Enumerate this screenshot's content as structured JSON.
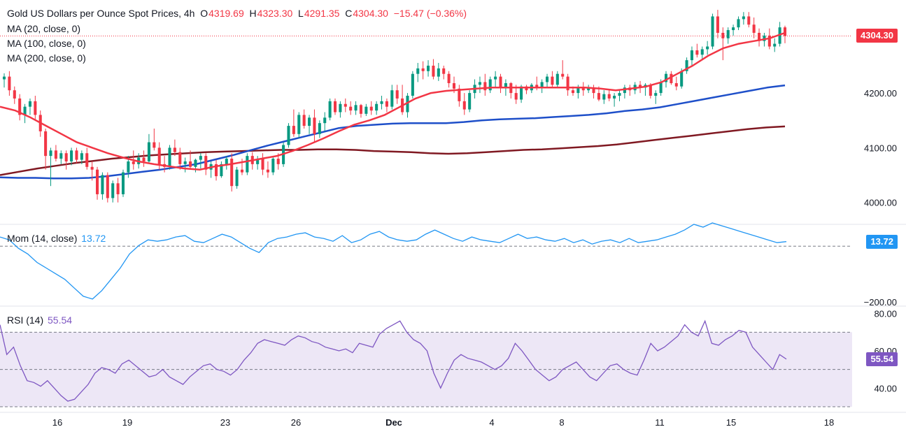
{
  "header": {
    "symbol": "Gold US Dollars per Ounce Spot Prices",
    "timeframe": "4h",
    "open_label": "O",
    "open": "4319.69",
    "high_label": "H",
    "high": "4323.30",
    "low_label": "L",
    "low": "4291.35",
    "close_label": "C",
    "close": "4304.30",
    "change": "−15.47 (−0.36%)"
  },
  "indicators": {
    "ma20": "MA (20, close, 0)",
    "ma100": "MA (100, close, 0)",
    "ma200": "MA (200, close, 0)",
    "mom": "Mom (14, close)",
    "mom_value": "13.72",
    "rsi": "RSI (14)",
    "rsi_value": "55.54"
  },
  "price_tag": "4304.30",
  "colors": {
    "up": "#089981",
    "down": "#f23645",
    "ma20": "#f23645",
    "ma100": "#1e4fc9",
    "ma200": "#801922",
    "mom": "#2196f3",
    "rsi": "#7e57c2",
    "rsi_band": "#ede7f6"
  },
  "chart_data": [
    {
      "type": "candlestick",
      "ylim": [
        3960,
        4370
      ],
      "yticks": [
        "4000.00",
        "4100.00",
        "4200.00"
      ],
      "xticks": [
        "16",
        "19",
        "23",
        "26",
        "Dec",
        "4",
        "8",
        "11",
        "15",
        "18"
      ],
      "last_price": 4304.3,
      "candles_ohlc": [
        [
          4225,
          4236,
          4210,
          4230
        ],
        [
          4230,
          4240,
          4195,
          4205
        ],
        [
          4205,
          4212,
          4180,
          4190
        ],
        [
          4190,
          4198,
          4150,
          4160
        ],
        [
          4160,
          4180,
          4145,
          4175
        ],
        [
          4175,
          4190,
          4160,
          4185
        ],
        [
          4185,
          4195,
          4150,
          4160
        ],
        [
          4160,
          4168,
          4120,
          4130
        ],
        [
          4130,
          4135,
          4060,
          4085
        ],
        [
          4085,
          4100,
          4030,
          4095
        ],
        [
          4095,
          4105,
          4075,
          4080
        ],
        [
          4080,
          4095,
          4070,
          4090
        ],
        [
          4090,
          4095,
          4060,
          4075
        ],
        [
          4075,
          4100,
          4068,
          4095
        ],
        [
          4095,
          4100,
          4072,
          4078
        ],
        [
          4078,
          4095,
          4070,
          4090
        ],
        [
          4090,
          4100,
          4060,
          4065
        ],
        [
          4065,
          4075,
          4040,
          4060
        ],
        [
          4060,
          4065,
          4005,
          4015
        ],
        [
          4015,
          4055,
          4005,
          4050
        ],
        [
          4050,
          4055,
          4000,
          4008
        ],
        [
          4008,
          4040,
          4000,
          4035
        ],
        [
          4035,
          4045,
          4000,
          4015
        ],
        [
          4015,
          4060,
          4010,
          4055
        ],
        [
          4055,
          4085,
          4045,
          4075
        ],
        [
          4075,
          4095,
          4060,
          4070
        ],
        [
          4070,
          4090,
          4062,
          4082
        ],
        [
          4082,
          4095,
          4065,
          4075
        ],
        [
          4075,
          4125,
          4072,
          4110
        ],
        [
          4110,
          4135,
          4095,
          4100
        ],
        [
          4100,
          4110,
          4060,
          4070
        ],
        [
          4070,
          4085,
          4055,
          4065
        ],
        [
          4065,
          4105,
          4060,
          4100
        ],
        [
          4100,
          4115,
          4085,
          4092
        ],
        [
          4092,
          4100,
          4060,
          4070
        ],
        [
          4070,
          4082,
          4055,
          4075
        ],
        [
          4075,
          4095,
          4062,
          4065
        ],
        [
          4065,
          4080,
          4055,
          4078
        ],
        [
          4078,
          4090,
          4062,
          4085
        ],
        [
          4085,
          4090,
          4050,
          4060
        ],
        [
          4060,
          4075,
          4045,
          4070
        ],
        [
          4070,
          4078,
          4040,
          4048
        ],
        [
          4048,
          4075,
          4045,
          4070
        ],
        [
          4070,
          4085,
          4060,
          4080
        ],
        [
          4080,
          4090,
          4020,
          4030
        ],
        [
          4030,
          4065,
          4025,
          4060
        ],
        [
          4060,
          4080,
          4050,
          4055
        ],
        [
          4055,
          4090,
          4050,
          4085
        ],
        [
          4085,
          4092,
          4060,
          4070
        ],
        [
          4070,
          4085,
          4060,
          4080
        ],
        [
          4080,
          4090,
          4050,
          4060
        ],
        [
          4060,
          4075,
          4045,
          4055
        ],
        [
          4055,
          4085,
          4050,
          4080
        ],
        [
          4080,
          4090,
          4060,
          4070
        ],
        [
          4070,
          4110,
          4065,
          4105
        ],
        [
          4105,
          4145,
          4100,
          4140
        ],
        [
          4140,
          4170,
          4120,
          4125
        ],
        [
          4125,
          4165,
          4118,
          4160
        ],
        [
          4160,
          4170,
          4135,
          4140
        ],
        [
          4140,
          4160,
          4125,
          4155
        ],
        [
          4155,
          4170,
          4110,
          4125
        ],
        [
          4125,
          4150,
          4118,
          4145
        ],
        [
          4145,
          4165,
          4130,
          4155
        ],
        [
          4155,
          4190,
          4150,
          4185
        ],
        [
          4185,
          4190,
          4160,
          4165
        ],
        [
          4165,
          4185,
          4155,
          4180
        ],
        [
          4180,
          4190,
          4165,
          4175
        ],
        [
          4175,
          4185,
          4160,
          4168
        ],
        [
          4168,
          4185,
          4160,
          4178
        ],
        [
          4178,
          4180,
          4155,
          4162
        ],
        [
          4162,
          4180,
          4158,
          4175
        ],
        [
          4175,
          4185,
          4160,
          4168
        ],
        [
          4168,
          4185,
          4160,
          4180
        ],
        [
          4180,
          4195,
          4170,
          4185
        ],
        [
          4185,
          4190,
          4165,
          4175
        ],
        [
          4175,
          4215,
          4170,
          4205
        ],
        [
          4205,
          4215,
          4180,
          4190
        ],
        [
          4190,
          4215,
          4160,
          4165
        ],
        [
          4165,
          4200,
          4155,
          4195
        ],
        [
          4195,
          4240,
          4190,
          4235
        ],
        [
          4235,
          4255,
          4220,
          4245
        ],
        [
          4245,
          4258,
          4225,
          4240
        ],
        [
          4240,
          4260,
          4230,
          4250
        ],
        [
          4250,
          4262,
          4225,
          4230
        ],
        [
          4230,
          4255,
          4222,
          4245
        ],
        [
          4245,
          4250,
          4225,
          4235
        ],
        [
          4235,
          4240,
          4210,
          4218
        ],
        [
          4218,
          4230,
          4200,
          4208
        ],
        [
          4208,
          4215,
          4175,
          4185
        ],
        [
          4185,
          4200,
          4160,
          4170
        ],
        [
          4170,
          4205,
          4165,
          4200
        ],
        [
          4200,
          4225,
          4190,
          4215
        ],
        [
          4215,
          4230,
          4200,
          4220
        ],
        [
          4220,
          4235,
          4195,
          4205
        ],
        [
          4205,
          4230,
          4200,
          4225
        ],
        [
          4225,
          4240,
          4210,
          4230
        ],
        [
          4230,
          4235,
          4200,
          4210
        ],
        [
          4210,
          4225,
          4195,
          4218
        ],
        [
          4218,
          4220,
          4190,
          4200
        ],
        [
          4200,
          4215,
          4180,
          4188
        ],
        [
          4188,
          4215,
          4182,
          4212
        ],
        [
          4212,
          4215,
          4198,
          4205
        ],
        [
          4205,
          4218,
          4200,
          4215
        ],
        [
          4215,
          4230,
          4205,
          4210
        ],
        [
          4210,
          4225,
          4200,
          4220
        ],
        [
          4220,
          4235,
          4210,
          4230
        ],
        [
          4230,
          4240,
          4210,
          4215
        ],
        [
          4215,
          4240,
          4210,
          4235
        ],
        [
          4235,
          4260,
          4225,
          4230
        ],
        [
          4230,
          4235,
          4195,
          4205
        ],
        [
          4205,
          4212,
          4195,
          4200
        ],
        [
          4200,
          4215,
          4190,
          4210
        ],
        [
          4210,
          4220,
          4195,
          4205
        ],
        [
          4205,
          4215,
          4200,
          4210
        ],
        [
          4210,
          4215,
          4190,
          4200
        ],
        [
          4200,
          4212,
          4185,
          4188
        ],
        [
          4188,
          4205,
          4180,
          4198
        ],
        [
          4198,
          4205,
          4185,
          4190
        ],
        [
          4190,
          4200,
          4175,
          4195
        ],
        [
          4195,
          4205,
          4185,
          4200
        ],
        [
          4200,
          4215,
          4190,
          4210
        ],
        [
          4210,
          4215,
          4195,
          4205
        ],
        [
          4205,
          4220,
          4198,
          4215
        ],
        [
          4215,
          4222,
          4200,
          4210
        ],
        [
          4210,
          4218,
          4195,
          4215
        ],
        [
          4215,
          4218,
          4190,
          4195
        ],
        [
          4195,
          4205,
          4180,
          4200
        ],
        [
          4200,
          4225,
          4195,
          4220
        ],
        [
          4220,
          4240,
          4210,
          4235
        ],
        [
          4235,
          4240,
          4215,
          4218
        ],
        [
          4218,
          4230,
          4205,
          4212
        ],
        [
          4212,
          4245,
          4208,
          4240
        ],
        [
          4240,
          4265,
          4235,
          4260
        ],
        [
          4260,
          4285,
          4250,
          4278
        ],
        [
          4278,
          4290,
          4265,
          4270
        ],
        [
          4270,
          4285,
          4260,
          4280
        ],
        [
          4280,
          4295,
          4270,
          4285
        ],
        [
          4285,
          4345,
          4280,
          4340
        ],
        [
          4340,
          4352,
          4300,
          4310
        ],
        [
          4310,
          4320,
          4260,
          4300
        ],
        [
          4300,
          4320,
          4290,
          4315
        ],
        [
          4315,
          4325,
          4305,
          4320
        ],
        [
          4320,
          4340,
          4315,
          4335
        ],
        [
          4335,
          4348,
          4325,
          4340
        ],
        [
          4340,
          4348,
          4320,
          4325
        ],
        [
          4325,
          4338,
          4300,
          4310
        ],
        [
          4310,
          4318,
          4285,
          4295
        ],
        [
          4295,
          4310,
          4285,
          4305
        ],
        [
          4305,
          4318,
          4280,
          4285
        ],
        [
          4285,
          4300,
          4275,
          4290
        ],
        [
          4290,
          4330,
          4285,
          4320
        ],
        [
          4320,
          4323,
          4291,
          4304.3
        ]
      ],
      "ma20": [
        4175,
        4168,
        4155,
        4140,
        4125,
        4110,
        4100,
        4090,
        4082,
        4075,
        4070,
        4066,
        4062,
        4060,
        4066,
        4070,
        4075,
        4080,
        4085,
        4094,
        4105,
        4117,
        4130,
        4142,
        4150,
        4160,
        4175,
        4190,
        4200,
        4204,
        4206,
        4208,
        4210,
        4210,
        4210,
        4210,
        4210,
        4210,
        4210,
        4208,
        4205,
        4208,
        4212,
        4220,
        4235,
        4250,
        4268,
        4282,
        4290,
        4295,
        4300,
        4310
      ],
      "ma100": [
        4046,
        4045,
        4045,
        4044,
        4044,
        4045,
        4048,
        4052,
        4056,
        4060,
        4065,
        4070,
        4078,
        4086,
        4095,
        4104,
        4112,
        4120,
        4128,
        4136,
        4140,
        4142,
        4144,
        4145,
        4145,
        4145,
        4147,
        4150,
        4152,
        4153,
        4154,
        4156,
        4158,
        4160,
        4163,
        4167,
        4170,
        4174,
        4180,
        4186,
        4192,
        4198,
        4204,
        4210,
        4214
      ],
      "ma200": [
        4050,
        4056,
        4062,
        4067,
        4072,
        4076,
        4080,
        4083,
        4086,
        4088,
        4090,
        4092,
        4093,
        4094,
        4095,
        4096,
        4096,
        4097,
        4097,
        4096,
        4094,
        4093,
        4092,
        4090,
        4089,
        4090,
        4092,
        4094,
        4096,
        4097,
        4099,
        4101,
        4103,
        4106,
        4110,
        4114,
        4118,
        4122,
        4126,
        4130,
        4134,
        4137,
        4139
      ]
    },
    {
      "type": "line",
      "name": "Mom (14, close)",
      "ylim": [
        -210,
        70
      ],
      "yticks": [
        "−200.00"
      ],
      "last_value": 13.72,
      "values": [
        30,
        20,
        -10,
        -30,
        -60,
        -80,
        -100,
        -120,
        -150,
        -180,
        -190,
        -160,
        -120,
        -80,
        -30,
        0,
        20,
        15,
        20,
        30,
        35,
        15,
        10,
        25,
        40,
        30,
        10,
        -10,
        -25,
        10,
        25,
        30,
        40,
        45,
        30,
        25,
        15,
        35,
        10,
        20,
        40,
        50,
        30,
        20,
        15,
        20,
        40,
        55,
        40,
        25,
        15,
        30,
        20,
        15,
        10,
        25,
        40,
        25,
        30,
        20,
        15,
        25,
        10,
        20,
        5,
        15,
        20,
        10,
        25,
        10,
        15,
        20,
        30,
        40,
        55,
        75,
        65,
        80,
        70,
        60,
        50,
        40,
        30,
        20,
        10,
        13.72
      ]
    },
    {
      "type": "line",
      "name": "RSI (14)",
      "ylim": [
        27,
        84
      ],
      "yticks": [
        "40.00",
        "60.00",
        "80.00"
      ],
      "bands": [
        70,
        50,
        30
      ],
      "last_value": 55.54,
      "values": [
        74,
        58,
        62,
        52,
        44,
        43,
        41,
        44,
        40,
        36,
        33,
        34,
        38,
        42,
        48,
        51,
        50,
        48,
        53,
        55,
        52,
        49,
        46,
        47,
        50,
        46,
        44,
        42,
        46,
        49,
        52,
        53,
        50,
        49,
        47,
        50,
        55,
        59,
        64,
        66,
        65,
        64,
        63,
        66,
        68,
        67,
        65,
        64,
        62,
        61,
        60,
        61,
        59,
        64,
        63,
        62,
        69,
        72,
        74,
        76,
        70,
        66,
        64,
        60,
        48,
        40,
        48,
        55,
        58,
        56,
        55,
        54,
        52,
        50,
        52,
        56,
        64,
        60,
        55,
        50,
        47,
        44,
        46,
        50,
        52,
        54,
        50,
        46,
        44,
        48,
        52,
        53,
        50,
        48,
        47,
        55,
        64,
        60,
        62,
        65,
        68,
        74,
        70,
        68,
        76,
        64,
        63,
        66,
        68,
        71,
        70,
        62,
        58,
        54,
        50,
        58,
        55.54
      ]
    }
  ]
}
